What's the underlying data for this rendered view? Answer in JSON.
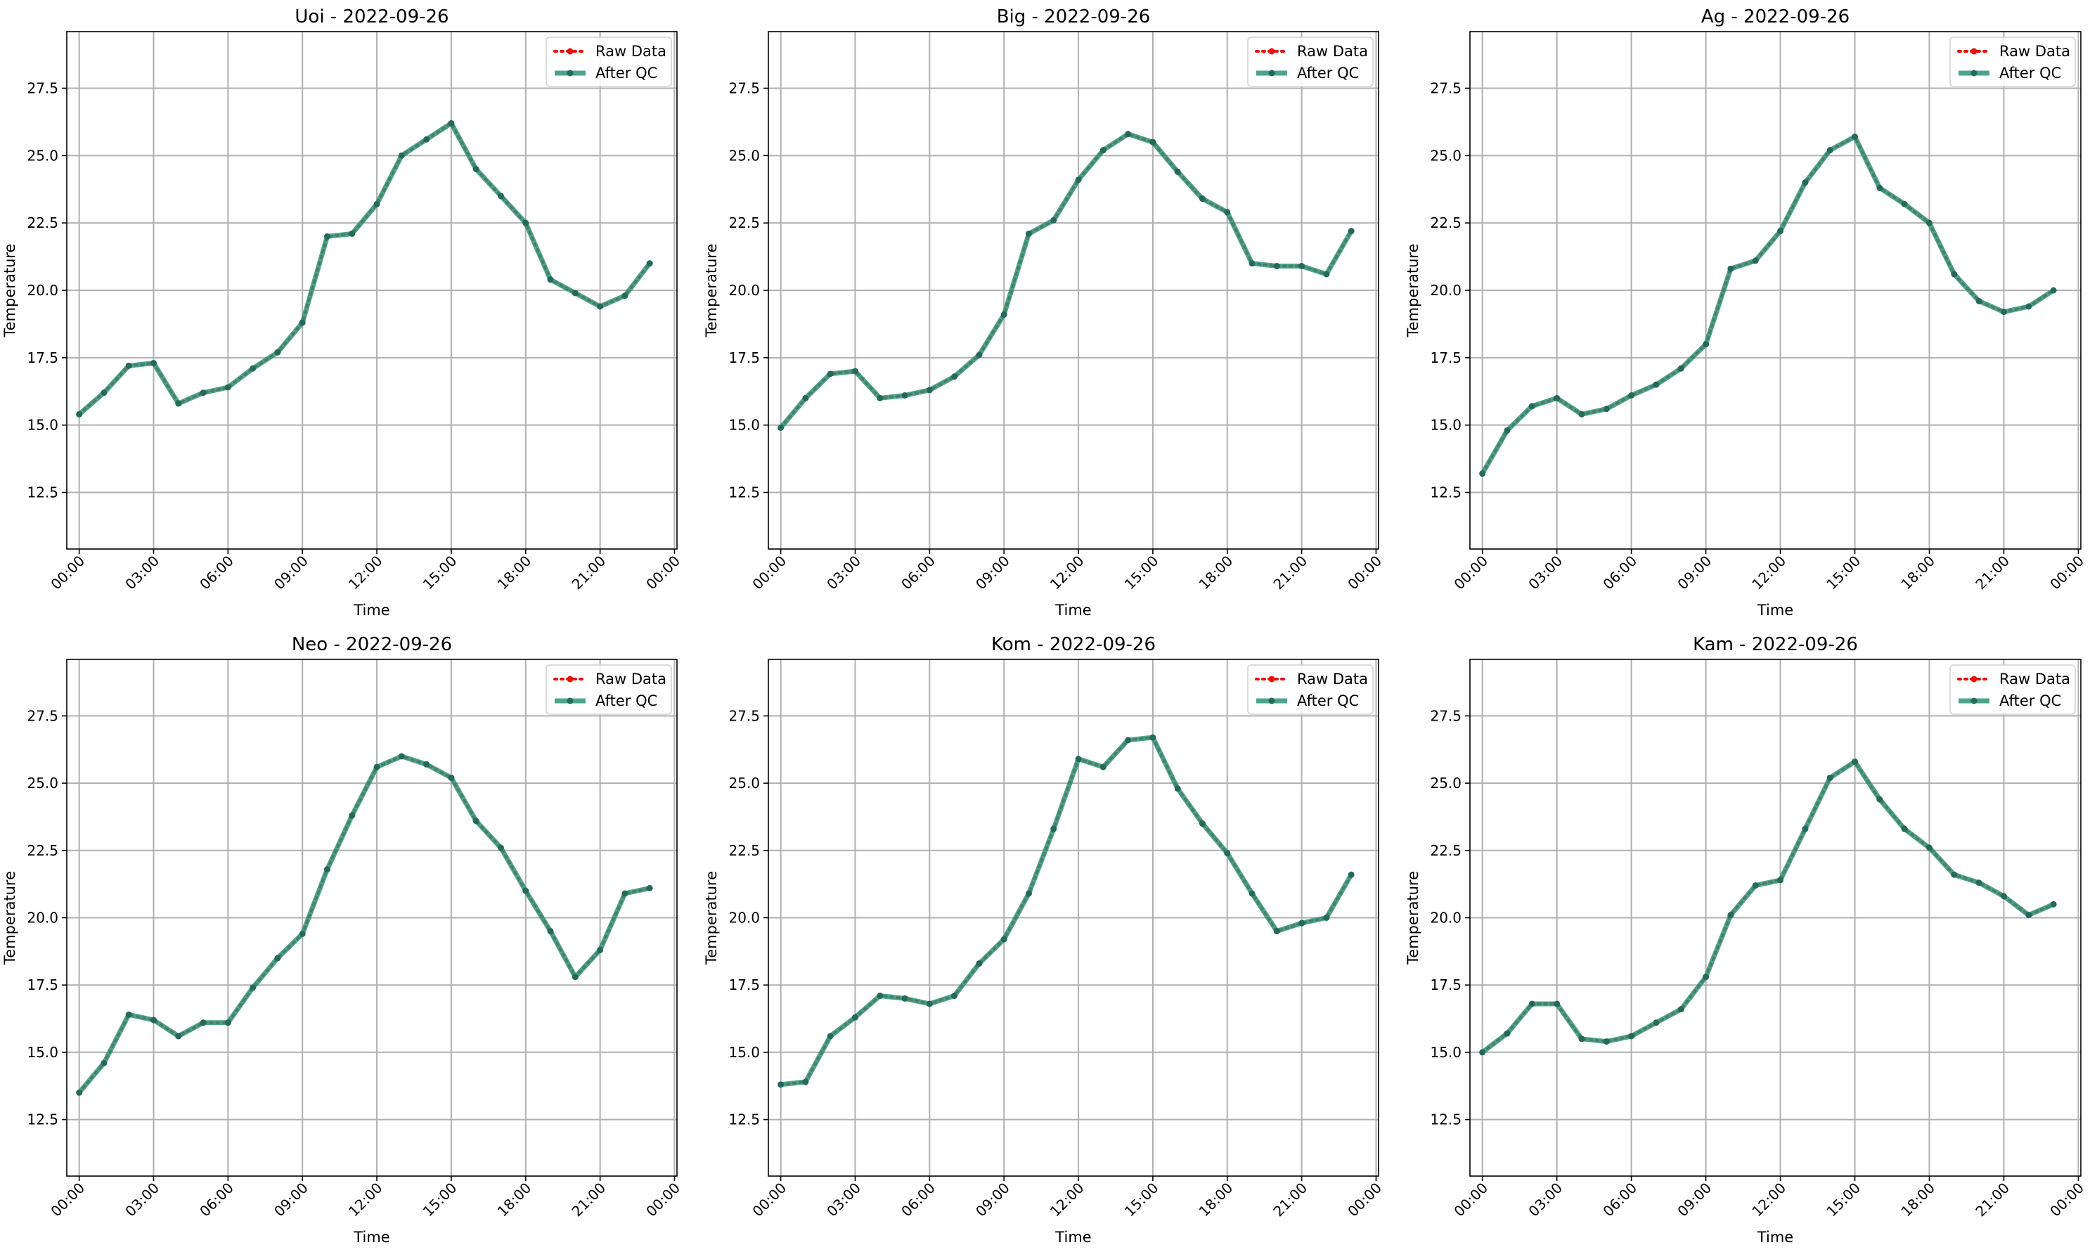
{
  "chart_data": [
    {
      "type": "line",
      "title": "Uoi - 2022-09-26",
      "xlabel": "Time",
      "ylabel": "Temperature",
      "x_ticks": [
        "00:00",
        "03:00",
        "06:00",
        "09:00",
        "12:00",
        "15:00",
        "18:00",
        "21:00",
        "00:00"
      ],
      "y_ticks": [
        "12.5",
        "15.0",
        "17.5",
        "20.0",
        "22.5",
        "25.0",
        "27.5"
      ],
      "xlim": [
        -0.5,
        24.1
      ],
      "ylim": [
        10.4,
        29.6
      ],
      "x": [
        0,
        1,
        2,
        3,
        4,
        5,
        6,
        7,
        8,
        9,
        10,
        11,
        12,
        13,
        14,
        15,
        16,
        17,
        18,
        19,
        20,
        21,
        22,
        23
      ],
      "series": [
        {
          "name": "Raw Data",
          "values": [
            15.4,
            16.2,
            17.2,
            17.3,
            15.8,
            16.2,
            16.4,
            17.1,
            17.7,
            18.8,
            22.0,
            22.1,
            23.2,
            25.0,
            25.6,
            26.2,
            24.5,
            23.5,
            22.5,
            20.4,
            19.9,
            19.4,
            19.8,
            21.0
          ]
        },
        {
          "name": "After QC",
          "values": [
            15.4,
            16.2,
            17.2,
            17.3,
            15.8,
            16.2,
            16.4,
            17.1,
            17.7,
            18.8,
            22.0,
            22.1,
            23.2,
            25.0,
            25.6,
            26.2,
            24.5,
            23.5,
            22.5,
            20.4,
            19.9,
            19.4,
            19.8,
            21.0
          ]
        }
      ],
      "grid": true,
      "legend": "top-right"
    },
    {
      "type": "line",
      "title": "Big - 2022-09-26",
      "xlabel": "Time",
      "ylabel": "Temperature",
      "x_ticks": [
        "00:00",
        "03:00",
        "06:00",
        "09:00",
        "12:00",
        "15:00",
        "18:00",
        "21:00",
        "00:00"
      ],
      "y_ticks": [
        "12.5",
        "15.0",
        "17.5",
        "20.0",
        "22.5",
        "25.0",
        "27.5"
      ],
      "xlim": [
        -0.5,
        24.1
      ],
      "ylim": [
        10.4,
        29.6
      ],
      "x": [
        0,
        1,
        2,
        3,
        4,
        5,
        6,
        7,
        8,
        9,
        10,
        11,
        12,
        13,
        14,
        15,
        16,
        17,
        18,
        19,
        20,
        21,
        22,
        23
      ],
      "series": [
        {
          "name": "Raw Data",
          "values": [
            14.9,
            16.0,
            16.9,
            17.0,
            16.0,
            16.1,
            16.3,
            16.8,
            17.6,
            19.1,
            22.1,
            22.6,
            24.1,
            25.2,
            25.8,
            25.5,
            24.4,
            23.4,
            22.9,
            21.0,
            20.9,
            20.9,
            20.6,
            22.2
          ]
        },
        {
          "name": "After QC",
          "values": [
            14.9,
            16.0,
            16.9,
            17.0,
            16.0,
            16.1,
            16.3,
            16.8,
            17.6,
            19.1,
            22.1,
            22.6,
            24.1,
            25.2,
            25.8,
            25.5,
            24.4,
            23.4,
            22.9,
            21.0,
            20.9,
            20.9,
            20.6,
            22.2
          ]
        }
      ],
      "grid": true,
      "legend": "top-right"
    },
    {
      "type": "line",
      "title": "Ag - 2022-09-26",
      "xlabel": "Time",
      "ylabel": "Temperature",
      "x_ticks": [
        "00:00",
        "03:00",
        "06:00",
        "09:00",
        "12:00",
        "15:00",
        "18:00",
        "21:00",
        "00:00"
      ],
      "y_ticks": [
        "12.5",
        "15.0",
        "17.5",
        "20.0",
        "22.5",
        "25.0",
        "27.5"
      ],
      "xlim": [
        -0.5,
        24.1
      ],
      "ylim": [
        10.4,
        29.6
      ],
      "x": [
        0,
        1,
        2,
        3,
        4,
        5,
        6,
        7,
        8,
        9,
        10,
        11,
        12,
        13,
        14,
        15,
        16,
        17,
        18,
        19,
        20,
        21,
        22,
        23
      ],
      "series": [
        {
          "name": "Raw Data",
          "values": [
            13.2,
            14.8,
            15.7,
            16.0,
            15.4,
            15.6,
            16.1,
            16.5,
            17.1,
            18.0,
            20.8,
            21.1,
            22.2,
            24.0,
            25.2,
            25.7,
            23.8,
            23.2,
            22.5,
            20.6,
            19.6,
            19.2,
            19.4,
            20.0
          ]
        },
        {
          "name": "After QC",
          "values": [
            13.2,
            14.8,
            15.7,
            16.0,
            15.4,
            15.6,
            16.1,
            16.5,
            17.1,
            18.0,
            20.8,
            21.1,
            22.2,
            24.0,
            25.2,
            25.7,
            23.8,
            23.2,
            22.5,
            20.6,
            19.6,
            19.2,
            19.4,
            20.0
          ]
        }
      ],
      "grid": true,
      "legend": "top-right"
    },
    {
      "type": "line",
      "title": "Neo - 2022-09-26",
      "xlabel": "Time",
      "ylabel": "Temperature",
      "x_ticks": [
        "00:00",
        "03:00",
        "06:00",
        "09:00",
        "12:00",
        "15:00",
        "18:00",
        "21:00",
        "00:00"
      ],
      "y_ticks": [
        "12.5",
        "15.0",
        "17.5",
        "20.0",
        "22.5",
        "25.0",
        "27.5"
      ],
      "xlim": [
        -0.5,
        24.1
      ],
      "ylim": [
        10.4,
        29.6
      ],
      "x": [
        0,
        1,
        2,
        3,
        4,
        5,
        6,
        7,
        8,
        9,
        10,
        11,
        12,
        13,
        14,
        15,
        16,
        17,
        18,
        19,
        20,
        21,
        22,
        23
      ],
      "series": [
        {
          "name": "Raw Data",
          "values": [
            13.5,
            14.6,
            16.4,
            16.2,
            15.6,
            16.1,
            16.1,
            17.4,
            18.5,
            19.4,
            21.8,
            23.8,
            25.6,
            26.0,
            25.7,
            25.2,
            23.6,
            22.6,
            21.0,
            19.5,
            17.8,
            18.8,
            20.9,
            21.1
          ]
        },
        {
          "name": "After QC",
          "values": [
            13.5,
            14.6,
            16.4,
            16.2,
            15.6,
            16.1,
            16.1,
            17.4,
            18.5,
            19.4,
            21.8,
            23.8,
            25.6,
            26.0,
            25.7,
            25.2,
            23.6,
            22.6,
            21.0,
            19.5,
            17.8,
            18.8,
            20.9,
            21.1
          ]
        }
      ],
      "grid": true,
      "legend": "top-right"
    },
    {
      "type": "line",
      "title": "Kom - 2022-09-26",
      "xlabel": "Time",
      "ylabel": "Temperature",
      "x_ticks": [
        "00:00",
        "03:00",
        "06:00",
        "09:00",
        "12:00",
        "15:00",
        "18:00",
        "21:00",
        "00:00"
      ],
      "y_ticks": [
        "12.5",
        "15.0",
        "17.5",
        "20.0",
        "22.5",
        "25.0",
        "27.5"
      ],
      "xlim": [
        -0.5,
        24.1
      ],
      "ylim": [
        10.4,
        29.6
      ],
      "x": [
        0,
        1,
        2,
        3,
        4,
        5,
        6,
        7,
        8,
        9,
        10,
        11,
        12,
        13,
        14,
        15,
        16,
        17,
        18,
        19,
        20,
        21,
        22,
        23
      ],
      "series": [
        {
          "name": "Raw Data",
          "values": [
            13.8,
            13.9,
            15.6,
            16.3,
            17.1,
            17.0,
            16.8,
            17.1,
            18.3,
            19.2,
            20.9,
            23.3,
            25.9,
            25.6,
            26.6,
            26.7,
            24.8,
            23.5,
            22.4,
            20.9,
            19.5,
            19.8,
            20.0,
            21.6
          ]
        },
        {
          "name": "After QC",
          "values": [
            13.8,
            13.9,
            15.6,
            16.3,
            17.1,
            17.0,
            16.8,
            17.1,
            18.3,
            19.2,
            20.9,
            23.3,
            25.9,
            25.6,
            26.6,
            26.7,
            24.8,
            23.5,
            22.4,
            20.9,
            19.5,
            19.8,
            20.0,
            21.6
          ]
        }
      ],
      "grid": true,
      "legend": "top-right"
    },
    {
      "type": "line",
      "title": "Kam - 2022-09-26",
      "xlabel": "Time",
      "ylabel": "Temperature",
      "x_ticks": [
        "00:00",
        "03:00",
        "06:00",
        "09:00",
        "12:00",
        "15:00",
        "18:00",
        "21:00",
        "00:00"
      ],
      "y_ticks": [
        "12.5",
        "15.0",
        "17.5",
        "20.0",
        "22.5",
        "25.0",
        "27.5"
      ],
      "xlim": [
        -0.5,
        24.1
      ],
      "ylim": [
        10.4,
        29.6
      ],
      "x": [
        0,
        1,
        2,
        3,
        4,
        5,
        6,
        7,
        8,
        9,
        10,
        11,
        12,
        13,
        14,
        15,
        16,
        17,
        18,
        19,
        20,
        21,
        22,
        23
      ],
      "series": [
        {
          "name": "Raw Data",
          "values": [
            15.0,
            15.7,
            16.8,
            16.8,
            15.5,
            15.4,
            15.6,
            16.1,
            16.6,
            17.8,
            20.1,
            21.2,
            21.4,
            23.3,
            25.2,
            25.8,
            24.4,
            23.3,
            22.6,
            21.6,
            21.3,
            20.8,
            20.1,
            20.5
          ]
        },
        {
          "name": "After QC",
          "values": [
            15.0,
            15.7,
            16.8,
            16.8,
            15.5,
            15.4,
            15.6,
            16.1,
            16.6,
            17.8,
            20.1,
            21.2,
            21.4,
            23.3,
            25.2,
            25.8,
            24.4,
            23.3,
            22.6,
            21.6,
            21.3,
            20.8,
            20.1,
            20.5
          ]
        }
      ],
      "grid": true,
      "legend": "top-right"
    }
  ],
  "colors": {
    "raw": "#e8110b",
    "qc_line": "#2e9478",
    "qc_marker": "#24695a",
    "grid": "#b0b0b0"
  }
}
